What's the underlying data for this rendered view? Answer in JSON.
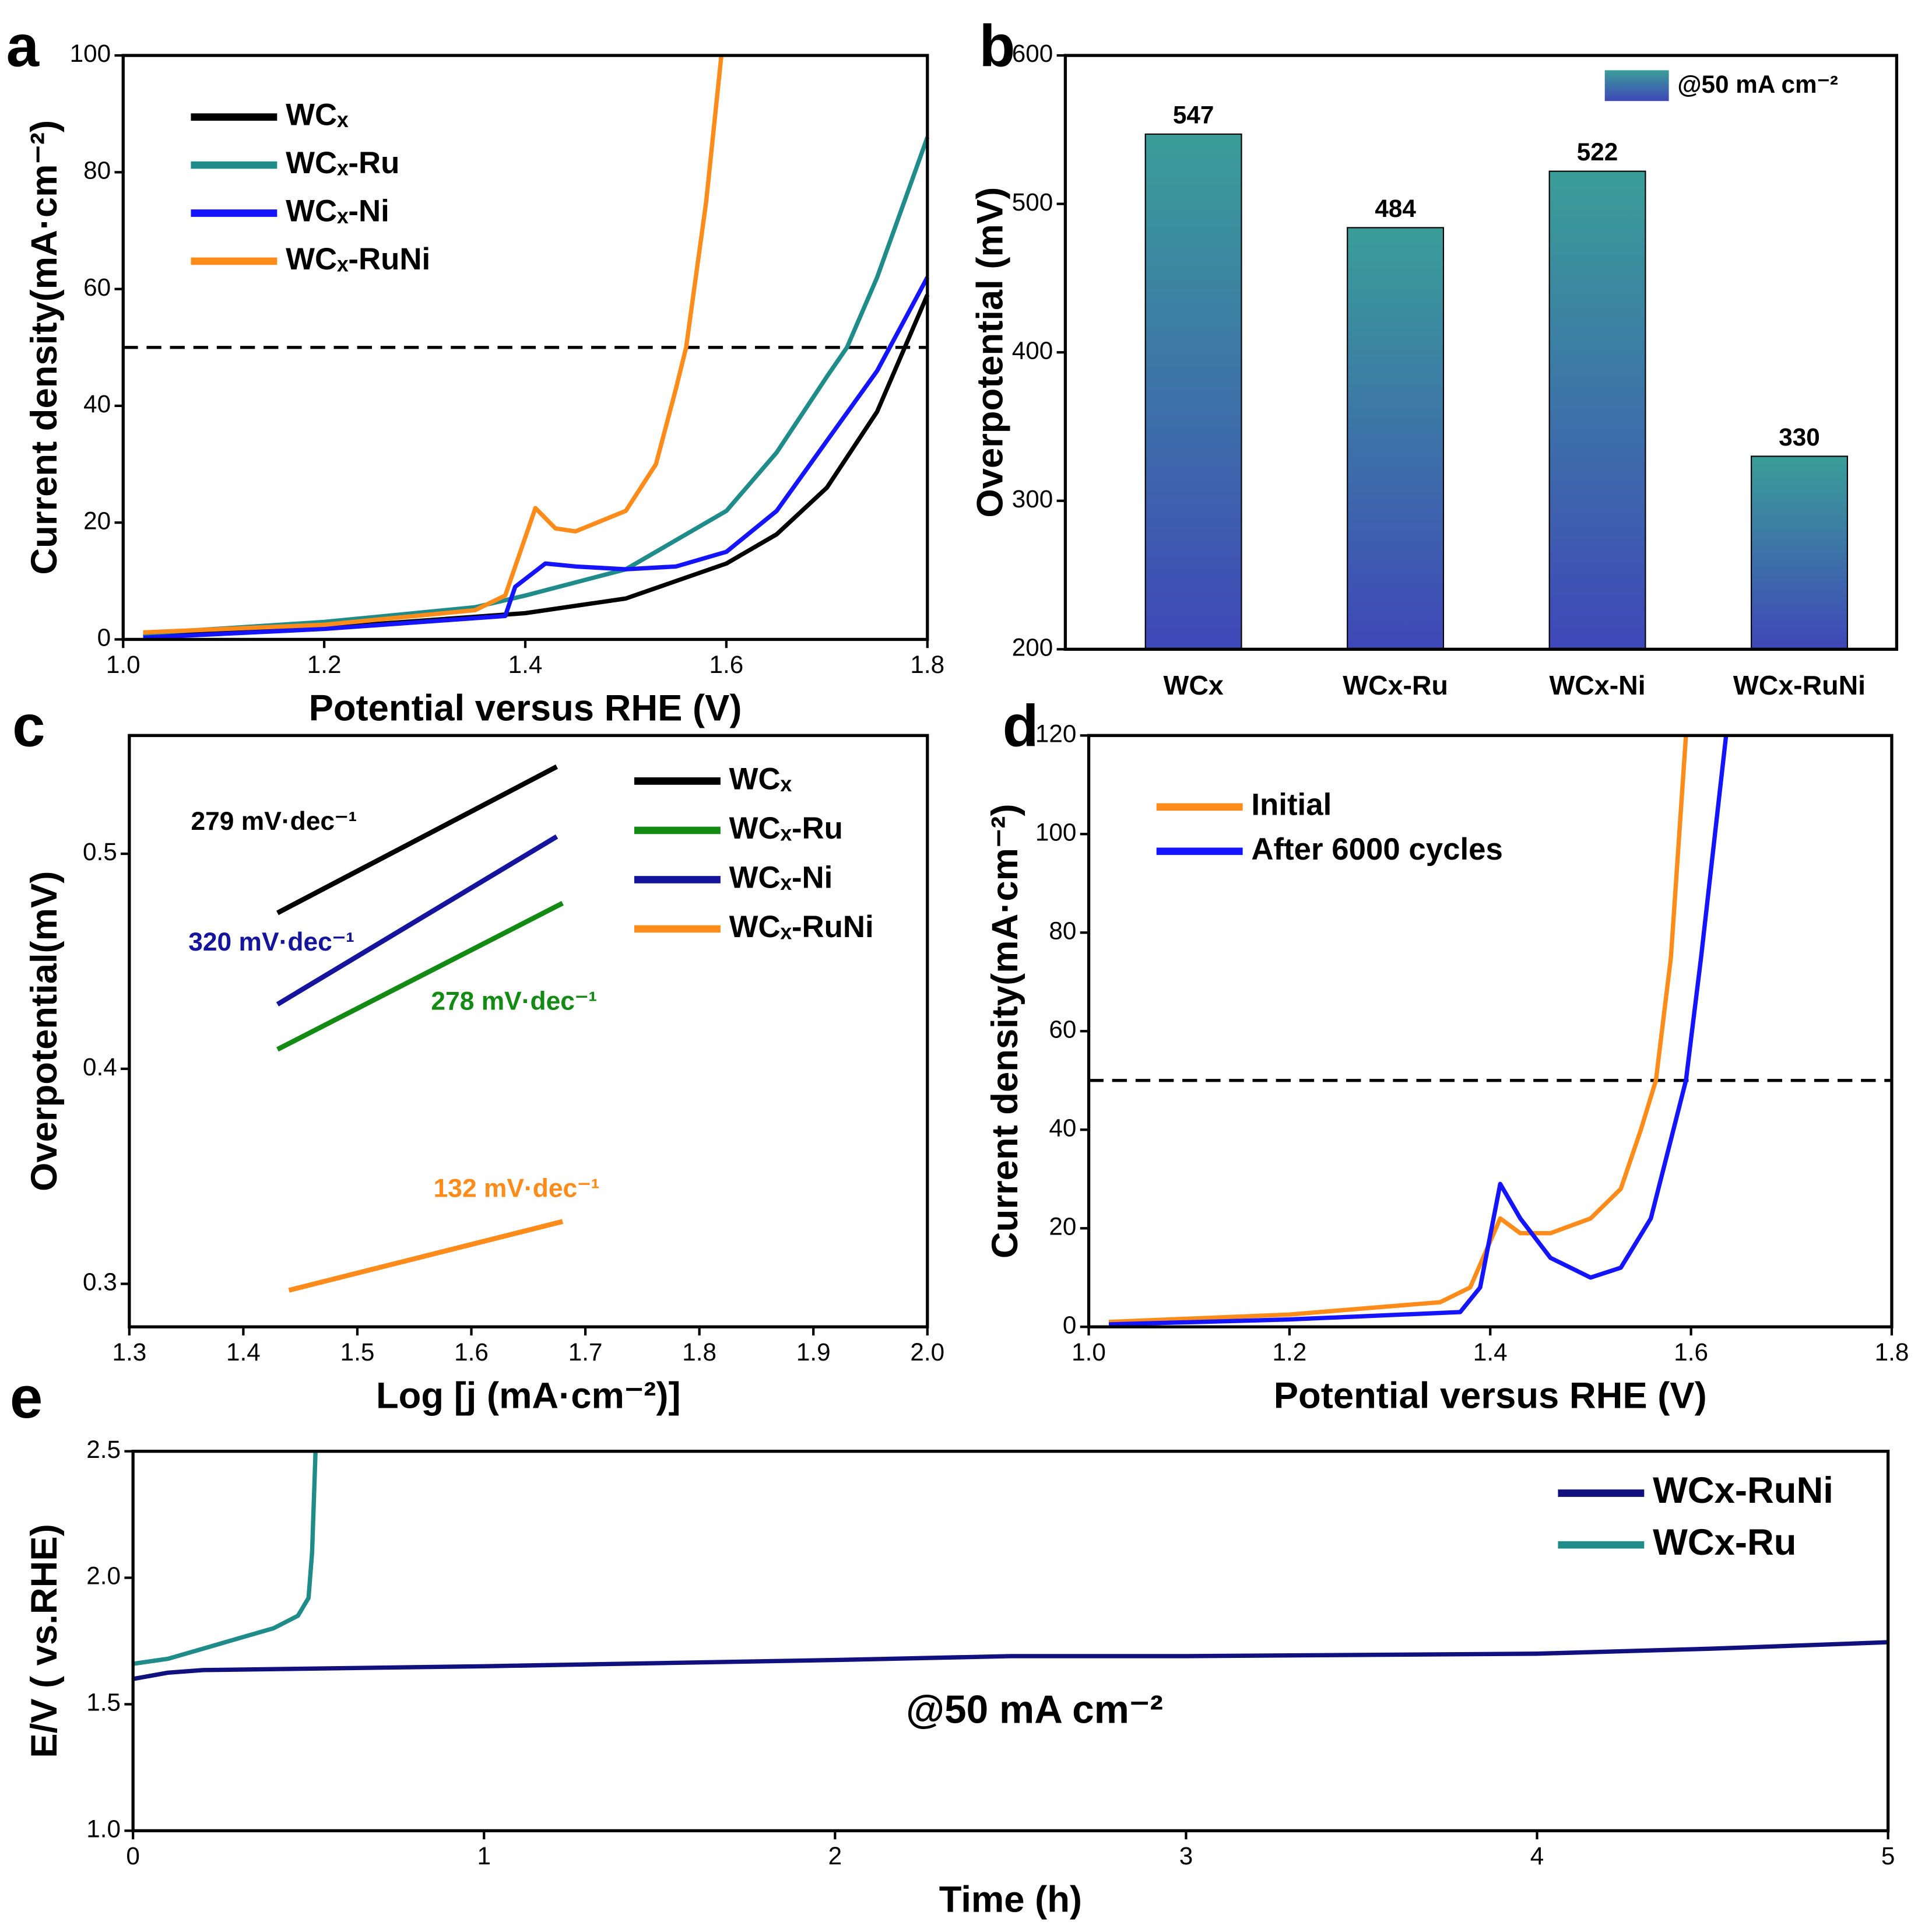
{
  "chart_data": [
    {
      "type": "line",
      "panel_label": "a",
      "xlabel": "Potential versus RHE (V)",
      "ylabel": "Current density(mA·cm⁻²)",
      "xlim": [
        1.0,
        1.8
      ],
      "xticks": [
        {
          "value": 1.0,
          "label": "1.0"
        },
        1.2,
        1.4,
        1.6,
        1.8
      ],
      "ylim": [
        0,
        100
      ],
      "yticks": [
        0,
        20,
        40,
        60,
        80,
        100
      ],
      "hline": 50,
      "legend": "upper left",
      "series": [
        {
          "name": "WCₓ",
          "color": "#000000",
          "x": [
            1.02,
            1.2,
            1.4,
            1.5,
            1.6,
            1.65,
            1.7,
            1.75,
            1.8
          ],
          "values": [
            0.5,
            2,
            4.5,
            7,
            13,
            18,
            26,
            39,
            59
          ]
        },
        {
          "name": "WCₓ-Ru",
          "color": "#1f8c8a",
          "x": [
            1.02,
            1.2,
            1.35,
            1.4,
            1.5,
            1.6,
            1.65,
            1.7,
            1.72,
            1.75,
            1.8
          ],
          "values": [
            1,
            3,
            5.5,
            7.5,
            12,
            22,
            32,
            45,
            50,
            62,
            86
          ]
        },
        {
          "name": "WCₓ-Ni",
          "color": "#1414ff",
          "x": [
            1.02,
            1.2,
            1.38,
            1.39,
            1.42,
            1.45,
            1.5,
            1.55,
            1.6,
            1.65,
            1.7,
            1.75,
            1.8
          ],
          "values": [
            0.3,
            1.8,
            4,
            9,
            13,
            12.5,
            12,
            12.5,
            15,
            22,
            34,
            46,
            62
          ]
        },
        {
          "name": "WCₓ-RuNi",
          "color": "#ff8c1a",
          "x": [
            1.02,
            1.2,
            1.35,
            1.38,
            1.41,
            1.43,
            1.45,
            1.5,
            1.53,
            1.55,
            1.56,
            1.58,
            1.595
          ],
          "values": [
            1.2,
            2.5,
            5,
            7.5,
            22.5,
            19,
            18.5,
            22,
            30,
            43,
            50,
            75,
            100
          ]
        }
      ]
    },
    {
      "type": "bar",
      "panel_label": "b",
      "ylabel": "Overpotential (mV)",
      "categories": [
        "WCx",
        "WCx-Ru",
        "WCx-Ni",
        "WCx-RuNi"
      ],
      "values": [
        547,
        484,
        522,
        330
      ],
      "ylim": [
        200,
        600
      ],
      "yticks": [
        200,
        300,
        400,
        500,
        600
      ],
      "legend": "upper right",
      "series_name": "@50 mA cm⁻²",
      "color": [
        "#3a9e98",
        "#3f47b8"
      ]
    },
    {
      "type": "line",
      "panel_label": "c",
      "xlabel": "Log [j (mA·cm⁻²)]",
      "ylabel": "Overpotential(mV)",
      "xlim": [
        1.3,
        2.0
      ],
      "xticks": [
        1.3,
        1.4,
        1.5,
        1.6,
        1.7,
        1.8,
        1.9,
        {
          "value": 2.0,
          "label": "2.0"
        }
      ],
      "ylim": [
        0.28,
        0.555
      ],
      "yticks": [
        0.3,
        0.4,
        0.5
      ],
      "legend": "upper right",
      "series": [
        {
          "name": "WCₓ",
          "color": "#000000",
          "x": [
            1.43,
            1.675
          ],
          "values": [
            0.4725,
            0.5405
          ]
        },
        {
          "name": "WCₓ-Ru",
          "color": "#138a13",
          "x": [
            1.43,
            1.68
          ],
          "values": [
            0.409,
            0.477
          ]
        },
        {
          "name": "WCₓ-Ni",
          "color": "#14149c",
          "x": [
            1.43,
            1.675
          ],
          "values": [
            0.43,
            0.508
          ]
        },
        {
          "name": "WCₓ-RuNi",
          "color": "#ff8c1a",
          "x": [
            1.44,
            1.68
          ],
          "values": [
            0.297,
            0.329
          ]
        }
      ],
      "annotations": [
        {
          "text": "279 mV·dec⁻¹",
          "color": "#000000"
        },
        {
          "text": "320 mV·dec⁻¹",
          "color": "#14149c"
        },
        {
          "text": "278 mV·dec⁻¹",
          "color": "#138a13"
        },
        {
          "text": "132 mV·dec⁻¹",
          "color": "#ff8c1a"
        }
      ]
    },
    {
      "type": "line",
      "panel_label": "d",
      "xlabel": "Potential versus RHE (V)",
      "ylabel": "Current density(mA·cm⁻²)",
      "xlim": [
        1.0,
        1.8
      ],
      "xticks": [
        {
          "value": 1.0,
          "label": "1.0"
        },
        1.2,
        1.4,
        1.6,
        1.8
      ],
      "ylim": [
        0,
        120
      ],
      "yticks": [
        0,
        20,
        40,
        60,
        80,
        100,
        120
      ],
      "hline": 50,
      "legend": "upper left",
      "series": [
        {
          "name": "Initial",
          "color": "#ff8c1a",
          "x": [
            1.02,
            1.2,
            1.35,
            1.38,
            1.41,
            1.43,
            1.46,
            1.5,
            1.53,
            1.55,
            1.565,
            1.58,
            1.595
          ],
          "values": [
            1,
            2.5,
            5,
            8,
            22,
            19,
            19,
            22,
            28,
            40,
            50,
            75,
            120
          ]
        },
        {
          "name": "After 6000 cycles",
          "color": "#1414ff",
          "x": [
            1.02,
            1.2,
            1.37,
            1.39,
            1.41,
            1.43,
            1.46,
            1.5,
            1.53,
            1.56,
            1.58,
            1.595,
            1.61,
            1.635
          ],
          "values": [
            0.5,
            1.5,
            3,
            8,
            29,
            22,
            14,
            10,
            12,
            22,
            38,
            50,
            75,
            120
          ]
        }
      ]
    },
    {
      "type": "line",
      "panel_label": "e",
      "xlabel": "Time (h)",
      "ylabel": "E/V ( vs.RHE)",
      "xlim": [
        0,
        5
      ],
      "xticks": [
        0,
        1,
        2,
        3,
        4,
        5
      ],
      "ylim": [
        1.0,
        2.5
      ],
      "yticks": [
        {
          "value": 1.0,
          "label": "1.0"
        },
        1.5,
        {
          "value": 2.0,
          "label": "2.0"
        },
        2.5
      ],
      "legend": "upper right",
      "series": [
        {
          "name": "WCx-RuNi",
          "color": "#10107e",
          "x": [
            0,
            0.1,
            0.2,
            1,
            2,
            2.5,
            3,
            4,
            4.5,
            5
          ],
          "values": [
            1.6,
            1.625,
            1.635,
            1.65,
            1.675,
            1.69,
            1.69,
            1.7,
            1.72,
            1.745
          ]
        },
        {
          "name": "WCx-Ru",
          "color": "#1f8c8a",
          "x": [
            0,
            0.1,
            0.2,
            0.3,
            0.4,
            0.47,
            0.5,
            0.51,
            0.52
          ],
          "values": [
            1.66,
            1.68,
            1.72,
            1.76,
            1.8,
            1.85,
            1.92,
            2.1,
            2.5
          ]
        }
      ],
      "annotations": [
        {
          "text": "@50 mA cm⁻²",
          "color": "#000000"
        }
      ]
    }
  ]
}
